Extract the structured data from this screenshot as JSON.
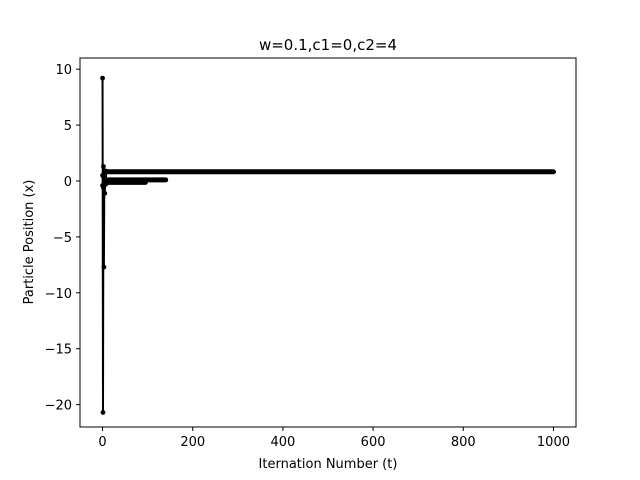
{
  "chart_data": {
    "type": "line",
    "title": "w=0.1,c1=0,c2=4",
    "xlabel": "Iternation Number (t)",
    "ylabel": "Particle Position (x)",
    "xlim": [
      -50,
      1050
    ],
    "ylim": [
      -22,
      11
    ],
    "xticks": [
      0,
      200,
      400,
      600,
      800,
      1000
    ],
    "yticks": [
      10,
      5,
      0,
      -5,
      -10,
      -15,
      -20
    ],
    "grid": false,
    "line_color": "#000000",
    "marker": "dot",
    "series": [
      {
        "points": [
          [
            0,
            9.2
          ],
          [
            1,
            -20.7
          ],
          [
            2,
            1.3
          ],
          [
            3,
            -7.7
          ],
          [
            4,
            0.6
          ],
          [
            5,
            -1.1
          ],
          [
            6,
            0.9
          ],
          [
            7,
            -0.3
          ],
          [
            8,
            0.8
          ]
        ],
        "plateau_from": 8,
        "plateau_to": 1000,
        "plateau_value": 0.83
      },
      {
        "points": [
          [
            0,
            0.5
          ],
          [
            2,
            -0.6
          ],
          [
            4,
            0.3
          ],
          [
            6,
            -0.2
          ],
          [
            8,
            0.1
          ]
        ],
        "plateau_from": 8,
        "plateau_to": 140,
        "plateau_value": 0.1
      },
      {
        "points": [
          [
            0,
            -0.4
          ],
          [
            2,
            0.4
          ],
          [
            4,
            -0.1
          ],
          [
            6,
            -0.1
          ]
        ],
        "plateau_from": 6,
        "plateau_to": 95,
        "plateau_value": -0.12
      }
    ]
  }
}
